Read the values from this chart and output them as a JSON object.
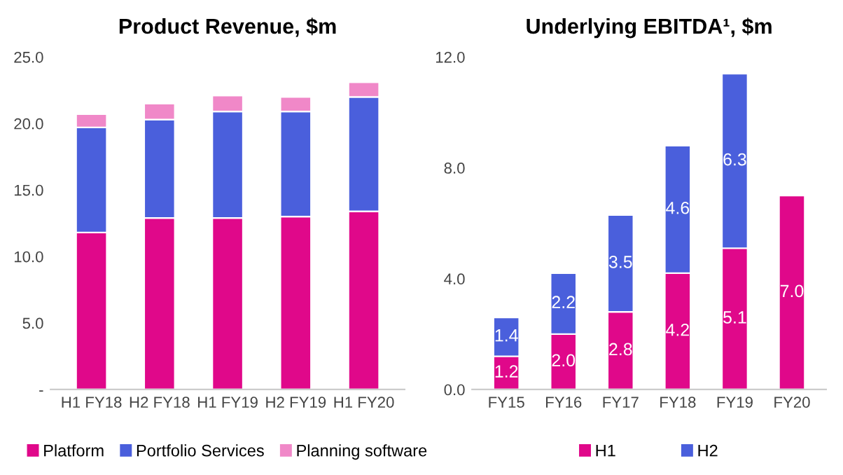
{
  "chart_data": [
    {
      "type": "bar",
      "title": "Product Revenue, $m",
      "stacked": true,
      "legend": "bottom",
      "categories": [
        "H1 FY18",
        "H2 FY18",
        "H1 FY19",
        "H2 FY19",
        "H1 FY20"
      ],
      "series": [
        {
          "name": "Platform",
          "color": "#e0088a",
          "values": [
            11.8,
            12.9,
            12.9,
            13.0,
            13.4
          ]
        },
        {
          "name": "Portfolio Services",
          "color": "#4a5fdc",
          "values": [
            7.9,
            7.4,
            8.0,
            7.9,
            8.6
          ]
        },
        {
          "name": "Planning software",
          "color": "#f088c8",
          "values": [
            1.0,
            1.2,
            1.2,
            1.1,
            1.1
          ]
        }
      ],
      "ylim": [
        0,
        25
      ],
      "yticks": [
        {
          "value": 0,
          "label": "-"
        },
        {
          "value": 5,
          "label": "5.0"
        },
        {
          "value": 10,
          "label": "10.0"
        },
        {
          "value": 15,
          "label": "15.0"
        },
        {
          "value": 20,
          "label": "20.0"
        },
        {
          "value": 25,
          "label": "25.0"
        }
      ]
    },
    {
      "type": "bar",
      "title": "Underlying EBITDA¹, $m",
      "stacked": true,
      "legend": "bottom",
      "categories": [
        "FY15",
        "FY16",
        "FY17",
        "FY18",
        "FY19",
        "FY20"
      ],
      "series": [
        {
          "name": "H1",
          "color": "#e0088a",
          "values": [
            1.2,
            2.0,
            2.8,
            4.2,
            5.1,
            7.0
          ],
          "value_labels": [
            "1.2",
            "2.0",
            "2.8",
            "4.2",
            "5.1",
            "7.0"
          ]
        },
        {
          "name": "H2",
          "color": "#4a5fdc",
          "values": [
            1.4,
            2.2,
            3.5,
            4.6,
            6.3,
            null
          ],
          "value_labels": [
            "1.4",
            "2.2",
            "3.5",
            "4.6",
            "6.3",
            null
          ]
        }
      ],
      "ylim": [
        0,
        12
      ],
      "yticks": [
        {
          "value": 0,
          "label": "0.0"
        },
        {
          "value": 4,
          "label": "4.0"
        },
        {
          "value": 8,
          "label": "8.0"
        },
        {
          "value": 12,
          "label": "12.0"
        }
      ]
    }
  ]
}
